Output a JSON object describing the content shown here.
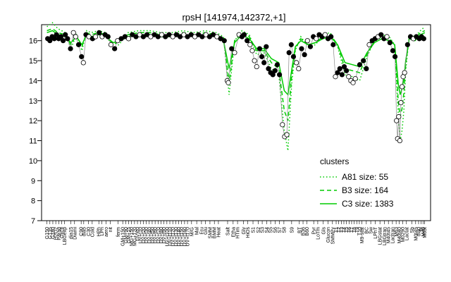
{
  "chart_data": {
    "type": "line",
    "title": "rpsH [141974,142372,+1]",
    "xlabel": "",
    "ylabel": "",
    "ylim": [
      7,
      16.8
    ],
    "yticks": [
      7,
      8,
      9,
      10,
      11,
      12,
      13,
      14,
      15,
      16
    ],
    "legend": {
      "title": "clusters",
      "placement": "lower-right",
      "entries": [
        {
          "label": "A81 size: 55",
          "style": "dotted",
          "color": "#00cc00"
        },
        {
          "label": "B3 size: 164",
          "style": "dashed",
          "color": "#00cc00"
        },
        {
          "label": "C3 size: 1383",
          "style": "solid",
          "color": "#00cc00"
        }
      ]
    },
    "x_labels": [
      {
        "x": 0.0,
        "label": "G150"
      },
      {
        "x": 0.8,
        "label": "G135"
      },
      {
        "x": 1.6,
        "label": "G180"
      },
      {
        "x": 2.4,
        "label": "H2O2"
      },
      {
        "x": 3.2,
        "label": "Paraq"
      },
      {
        "x": 4.0,
        "label": "Oxctl"
      },
      {
        "x": 4.8,
        "label": "LBGexp"
      },
      {
        "x": 6.5,
        "label": "dia15"
      },
      {
        "x": 7.5,
        "label": "Diami"
      },
      {
        "x": 9.3,
        "label": "C90"
      },
      {
        "x": 10.0,
        "label": "dia5"
      },
      {
        "x": 11.3,
        "label": "C30"
      },
      {
        "x": 12.3,
        "label": "Cold"
      },
      {
        "x": 14.1,
        "label": "HPh"
      },
      {
        "x": 14.9,
        "label": "LPh"
      },
      {
        "x": 16.1,
        "label": "aero"
      },
      {
        "x": 17.2,
        "label": "nit"
      },
      {
        "x": 19.3,
        "label": "ferm"
      },
      {
        "x": 20.6,
        "label": "GM+150"
      },
      {
        "x": 21.4,
        "label": "GM+90"
      },
      {
        "x": 22.2,
        "label": "GM+15"
      },
      {
        "x": 23.0,
        "label": "MG+150"
      },
      {
        "x": 23.8,
        "label": "MG+120"
      },
      {
        "x": 24.6,
        "label": "UV+t0"
      },
      {
        "x": 25.4,
        "label": "UV+t10"
      },
      {
        "x": 26.2,
        "label": "UV+t20"
      },
      {
        "x": 27.0,
        "label": "UV+t30"
      },
      {
        "x": 27.8,
        "label": "UV+t40"
      },
      {
        "x": 28.6,
        "label": "UV+t50"
      },
      {
        "x": 29.4,
        "label": "UV+t60"
      },
      {
        "x": 30.2,
        "label": "UV+t70"
      },
      {
        "x": 31.0,
        "label": "UV+t80"
      },
      {
        "x": 31.8,
        "label": "UV+t90"
      },
      {
        "x": 32.6,
        "label": "UV+t100"
      },
      {
        "x": 33.4,
        "label": "UV+t110"
      },
      {
        "x": 34.2,
        "label": "UV+t120"
      },
      {
        "x": 35.0,
        "label": "UV+t130"
      },
      {
        "x": 35.8,
        "label": "UV+t140"
      },
      {
        "x": 36.6,
        "label": "UV+t150"
      },
      {
        "x": 37.4,
        "label": "UV+t160"
      },
      {
        "x": 38.2,
        "label": "UV+t170"
      },
      {
        "x": 39.3,
        "label": "M/G"
      },
      {
        "x": 40.7,
        "label": "Mal"
      },
      {
        "x": 42.0,
        "label": "Fru"
      },
      {
        "x": 43.1,
        "label": "Glu"
      },
      {
        "x": 44.3,
        "label": "SMM"
      },
      {
        "x": 45.5,
        "label": "BMM"
      },
      {
        "x": 46.6,
        "label": "Heat"
      },
      {
        "x": 49.1,
        "label": "Salt"
      },
      {
        "x": 50.6,
        "label": "Etha"
      },
      {
        "x": 51.8,
        "label": "HTim"
      },
      {
        "x": 53.4,
        "label": "Gly"
      },
      {
        "x": 54.6,
        "label": "HiOs"
      },
      {
        "x": 56.0,
        "label": "S1"
      },
      {
        "x": 57.4,
        "label": "S2"
      },
      {
        "x": 58.5,
        "label": "S3"
      },
      {
        "x": 59.7,
        "label": "S4"
      },
      {
        "x": 60.8,
        "label": "S5"
      },
      {
        "x": 62.0,
        "label": "S6"
      },
      {
        "x": 63.2,
        "label": "S7"
      },
      {
        "x": 64.4,
        "label": "S8"
      },
      {
        "x": 66.5,
        "label": "S9"
      },
      {
        "x": 68.6,
        "label": "BT"
      },
      {
        "x": 69.6,
        "label": "B36"
      },
      {
        "x": 70.6,
        "label": "B60"
      },
      {
        "x": 72.5,
        "label": "Pyr"
      },
      {
        "x": 73.6,
        "label": "LoTm"
      },
      {
        "x": 75.1,
        "label": "Gls"
      },
      {
        "x": 76.4,
        "label": "Glucon"
      },
      {
        "x": 77.6,
        "label": "SMMPy"
      },
      {
        "x": 78.6,
        "label": "T1"
      },
      {
        "x": 79.3,
        "label": "T2"
      },
      {
        "x": 80.0,
        "label": "T3"
      },
      {
        "x": 80.7,
        "label": "T4"
      },
      {
        "x": 81.4,
        "label": "T5"
      },
      {
        "x": 82.1,
        "label": "T6"
      },
      {
        "x": 82.8,
        "label": "T7"
      },
      {
        "x": 83.5,
        "label": "T8"
      },
      {
        "x": 84.2,
        "label": "T9"
      },
      {
        "x": 84.9,
        "label": "T10"
      },
      {
        "x": 85.6,
        "label": "M9-stat"
      },
      {
        "x": 86.8,
        "label": "BC"
      },
      {
        "x": 88.0,
        "label": "Sw"
      },
      {
        "x": 89.2,
        "label": "LPhT"
      },
      {
        "x": 90.5,
        "label": "LBGstat"
      },
      {
        "x": 91.7,
        "label": "LBGtran"
      },
      {
        "x": 92.8,
        "label": "M40t45"
      },
      {
        "x": 93.9,
        "label": "Lactran"
      },
      {
        "x": 94.9,
        "label": "M63"
      },
      {
        "x": 95.7,
        "label": "M40t40"
      },
      {
        "x": 96.7,
        "label": "M0290"
      },
      {
        "x": 97.7,
        "label": "Lactat"
      },
      {
        "x": 99.2,
        "label": "Sb"
      },
      {
        "x": 100.2,
        "label": "M0t45"
      },
      {
        "x": 101.0,
        "label": "dia0"
      },
      {
        "x": 101.7,
        "label": "Bl"
      },
      {
        "x": 102.2,
        "label": "M40"
      },
      {
        "x": 102.6,
        "label": "M63t"
      }
    ],
    "series": [
      {
        "name": "A81 size: 55",
        "style": "dotted",
        "color": "#00cc00",
        "x": [
          0,
          1.5,
          3,
          5,
          6.5,
          8,
          9.5,
          10.8,
          12,
          14,
          16,
          18,
          20,
          22,
          25,
          28,
          31,
          34,
          37,
          40,
          43,
          46,
          48,
          49.5,
          51,
          53,
          55,
          57,
          59,
          61,
          63,
          64.5,
          65.5,
          66.5,
          67.5,
          69,
          71,
          73,
          75,
          77,
          79,
          81,
          83,
          85,
          87,
          89,
          91,
          93,
          94.5,
          95.5,
          96,
          96.5,
          97,
          97.5,
          98.5,
          100,
          101.5,
          102.7
        ],
        "y": [
          16.7,
          16.9,
          16.6,
          16.4,
          15.6,
          16.3,
          15.5,
          16.5,
          16.4,
          16.5,
          16.4,
          15.5,
          15.9,
          16.4,
          16.5,
          16.5,
          16.4,
          16.4,
          16.5,
          16.4,
          16.5,
          16.4,
          16.2,
          13.3,
          16.0,
          16.5,
          16.3,
          15.3,
          15.4,
          14.6,
          14.3,
          11.5,
          10.5,
          13.8,
          15.5,
          16.2,
          15.7,
          15.8,
          16.3,
          16.4,
          15.7,
          14.3,
          14.2,
          14.0,
          15.2,
          16.0,
          16.3,
          16.2,
          15.8,
          12.2,
          11.0,
          11.5,
          12.5,
          14.5,
          16.3,
          16.2,
          16.5,
          16.7
        ]
      },
      {
        "name": "B3 size: 164",
        "style": "dashed",
        "color": "#00cc00",
        "x": [
          0,
          1.5,
          3,
          5,
          6.5,
          8,
          9.5,
          10.8,
          12,
          14,
          16,
          18,
          20,
          22,
          25,
          28,
          31,
          34,
          37,
          40,
          43,
          46,
          48,
          49.5,
          51,
          53,
          55,
          57,
          59,
          61,
          63,
          64.5,
          65.5,
          66.5,
          67.5,
          69,
          71,
          73,
          75,
          77,
          79,
          81,
          83,
          85,
          87,
          89,
          91,
          93,
          94.5,
          95.5,
          96,
          96.5,
          97,
          97.5,
          98.5,
          100,
          101.5,
          102.7
        ],
        "y": [
          16.5,
          16.6,
          16.4,
          16.3,
          15.8,
          16.3,
          15.7,
          16.4,
          16.3,
          16.4,
          16.3,
          15.8,
          16.0,
          16.3,
          16.4,
          16.4,
          16.3,
          16.3,
          16.4,
          16.3,
          16.4,
          16.3,
          16.1,
          13.9,
          16.0,
          16.4,
          16.2,
          15.5,
          15.5,
          14.9,
          14.6,
          12.5,
          12.0,
          14.2,
          15.6,
          16.1,
          15.8,
          15.9,
          16.2,
          16.3,
          15.8,
          14.6,
          14.5,
          14.4,
          15.3,
          16.0,
          16.2,
          16.1,
          15.8,
          12.9,
          12.2,
          12.6,
          13.4,
          14.8,
          16.2,
          16.1,
          16.4,
          16.5
        ]
      },
      {
        "name": "C3 size: 1383",
        "style": "solid",
        "color": "#00cc00",
        "x": [
          0,
          1.5,
          3,
          5,
          6.5,
          8,
          9.5,
          10.8,
          12,
          14,
          16,
          18,
          20,
          22,
          25,
          28,
          31,
          34,
          37,
          40,
          43,
          46,
          48,
          49.5,
          51,
          53,
          55,
          57,
          59,
          61,
          63,
          64.5,
          65.5,
          66.5,
          67.5,
          69,
          71,
          73,
          75,
          77,
          79,
          81,
          83,
          85,
          87,
          89,
          91,
          93,
          94.5,
          95.5,
          96,
          96.5,
          97,
          97.5,
          98.5,
          100,
          101.5,
          102.7
        ],
        "y": [
          16.4,
          16.5,
          16.3,
          16.2,
          15.9,
          16.2,
          15.8,
          16.3,
          16.2,
          16.3,
          16.2,
          15.9,
          16.0,
          16.2,
          16.3,
          16.3,
          16.2,
          16.2,
          16.3,
          16.2,
          16.3,
          16.2,
          16.0,
          14.6,
          15.9,
          16.3,
          16.1,
          15.6,
          15.6,
          15.1,
          14.9,
          13.5,
          13.3,
          14.5,
          15.7,
          16.0,
          15.8,
          15.9,
          16.1,
          16.2,
          15.8,
          14.9,
          14.8,
          14.7,
          15.4,
          15.9,
          16.1,
          16.0,
          15.8,
          13.8,
          13.3,
          13.6,
          14.1,
          15.0,
          16.1,
          16.0,
          16.3,
          16.4
        ]
      }
    ],
    "points": [
      {
        "x": 0.2,
        "y": 16.1
      },
      {
        "x": 0.8,
        "y": 16.0
      },
      {
        "x": 1.4,
        "y": 16.2
      },
      {
        "x": 2.0,
        "y": 16.1
      },
      {
        "x": 2.6,
        "y": 16.3
      },
      {
        "x": 3.2,
        "y": 16.1
      },
      {
        "x": 3.8,
        "y": 16.2
      },
      {
        "x": 4.4,
        "y": 16.0
      },
      {
        "x": 5.0,
        "y": 16.3
      },
      {
        "x": 5.6,
        "y": 16.1
      },
      {
        "x": 6.4,
        "y": 15.6
      },
      {
        "x": 7.2,
        "y": 16.4
      },
      {
        "x": 7.8,
        "y": 16.2
      },
      {
        "x": 8.6,
        "y": 15.8
      },
      {
        "x": 9.4,
        "y": 15.2
      },
      {
        "x": 9.9,
        "y": 14.9
      },
      {
        "x": 10.6,
        "y": 16.3
      },
      {
        "x": 11.4,
        "y": 16.2
      },
      {
        "x": 12.4,
        "y": 16.1
      },
      {
        "x": 13.2,
        "y": 16.2
      },
      {
        "x": 14.2,
        "y": 16.4
      },
      {
        "x": 15.0,
        "y": 16.2
      },
      {
        "x": 15.8,
        "y": 16.3
      },
      {
        "x": 16.6,
        "y": 16.2
      },
      {
        "x": 17.4,
        "y": 15.8
      },
      {
        "x": 18.4,
        "y": 15.6
      },
      {
        "x": 19.2,
        "y": 16.0
      },
      {
        "x": 20.2,
        "y": 16.1
      },
      {
        "x": 21.2,
        "y": 16.2
      },
      {
        "x": 22.2,
        "y": 16.1
      },
      {
        "x": 23.2,
        "y": 16.3
      },
      {
        "x": 24.2,
        "y": 16.2
      },
      {
        "x": 25.2,
        "y": 16.3
      },
      {
        "x": 26.2,
        "y": 16.2
      },
      {
        "x": 27.2,
        "y": 16.3
      },
      {
        "x": 28.2,
        "y": 16.2
      },
      {
        "x": 29.2,
        "y": 16.3
      },
      {
        "x": 30.2,
        "y": 16.2
      },
      {
        "x": 31.2,
        "y": 16.3
      },
      {
        "x": 32.2,
        "y": 16.2
      },
      {
        "x": 33.2,
        "y": 16.3
      },
      {
        "x": 34.2,
        "y": 16.2
      },
      {
        "x": 35.2,
        "y": 16.3
      },
      {
        "x": 36.2,
        "y": 16.2
      },
      {
        "x": 37.2,
        "y": 16.3
      },
      {
        "x": 38.2,
        "y": 16.2
      },
      {
        "x": 39.2,
        "y": 16.3
      },
      {
        "x": 40.2,
        "y": 16.2
      },
      {
        "x": 41.2,
        "y": 16.3
      },
      {
        "x": 42.2,
        "y": 16.2
      },
      {
        "x": 43.2,
        "y": 16.3
      },
      {
        "x": 44.2,
        "y": 16.2
      },
      {
        "x": 45.2,
        "y": 16.3
      },
      {
        "x": 46.2,
        "y": 16.2
      },
      {
        "x": 47.2,
        "y": 16.1
      },
      {
        "x": 48.2,
        "y": 16.0
      },
      {
        "x": 49.0,
        "y": 14.0
      },
      {
        "x": 49.3,
        "y": 13.9
      },
      {
        "x": 50.2,
        "y": 15.6
      },
      {
        "x": 51.0,
        "y": 15.4
      },
      {
        "x": 52.2,
        "y": 16.3
      },
      {
        "x": 53.0,
        "y": 16.2
      },
      {
        "x": 53.6,
        "y": 16.3
      },
      {
        "x": 54.4,
        "y": 16.0
      },
      {
        "x": 55.2,
        "y": 15.8
      },
      {
        "x": 55.8,
        "y": 15.5
      },
      {
        "x": 56.4,
        "y": 15.0
      },
      {
        "x": 57.0,
        "y": 14.7
      },
      {
        "x": 57.8,
        "y": 15.6
      },
      {
        "x": 58.4,
        "y": 15.2
      },
      {
        "x": 59.0,
        "y": 14.9
      },
      {
        "x": 59.6,
        "y": 15.7
      },
      {
        "x": 60.2,
        "y": 14.6
      },
      {
        "x": 60.8,
        "y": 14.4
      },
      {
        "x": 61.4,
        "y": 14.3
      },
      {
        "x": 62.0,
        "y": 14.5
      },
      {
        "x": 62.6,
        "y": 14.8
      },
      {
        "x": 63.2,
        "y": 14.3
      },
      {
        "x": 64.0,
        "y": 11.8
      },
      {
        "x": 64.6,
        "y": 11.2
      },
      {
        "x": 65.2,
        "y": 11.3
      },
      {
        "x": 65.8,
        "y": 15.4
      },
      {
        "x": 66.4,
        "y": 15.8
      },
      {
        "x": 67.0,
        "y": 15.2
      },
      {
        "x": 67.8,
        "y": 14.9
      },
      {
        "x": 68.4,
        "y": 14.6
      },
      {
        "x": 69.2,
        "y": 15.6
      },
      {
        "x": 70.0,
        "y": 15.3
      },
      {
        "x": 70.8,
        "y": 16.0
      },
      {
        "x": 71.6,
        "y": 15.7
      },
      {
        "x": 72.4,
        "y": 16.2
      },
      {
        "x": 73.2,
        "y": 16.1
      },
      {
        "x": 74.0,
        "y": 16.3
      },
      {
        "x": 74.8,
        "y": 16.2
      },
      {
        "x": 75.6,
        "y": 16.3
      },
      {
        "x": 76.4,
        "y": 16.1
      },
      {
        "x": 77.2,
        "y": 16.2
      },
      {
        "x": 77.8,
        "y": 15.8
      },
      {
        "x": 78.4,
        "y": 14.2
      },
      {
        "x": 79.0,
        "y": 14.4
      },
      {
        "x": 79.6,
        "y": 14.6
      },
      {
        "x": 80.2,
        "y": 14.3
      },
      {
        "x": 80.8,
        "y": 14.7
      },
      {
        "x": 81.4,
        "y": 14.5
      },
      {
        "x": 82.0,
        "y": 14.2
      },
      {
        "x": 82.6,
        "y": 14.0
      },
      {
        "x": 83.2,
        "y": 13.9
      },
      {
        "x": 83.8,
        "y": 14.1
      },
      {
        "x": 85.0,
        "y": 14.8
      },
      {
        "x": 86.0,
        "y": 15.0
      },
      {
        "x": 86.8,
        "y": 14.6
      },
      {
        "x": 87.6,
        "y": 15.8
      },
      {
        "x": 88.4,
        "y": 16.0
      },
      {
        "x": 89.2,
        "y": 16.1
      },
      {
        "x": 90.0,
        "y": 16.2
      },
      {
        "x": 90.8,
        "y": 16.3
      },
      {
        "x": 91.6,
        "y": 16.1
      },
      {
        "x": 92.4,
        "y": 16.2
      },
      {
        "x": 93.2,
        "y": 15.9
      },
      {
        "x": 94.0,
        "y": 15.5
      },
      {
        "x": 94.6,
        "y": 15.2
      },
      {
        "x": 95.0,
        "y": 12.0
      },
      {
        "x": 95.3,
        "y": 11.1
      },
      {
        "x": 95.6,
        "y": 12.2
      },
      {
        "x": 95.9,
        "y": 11.0
      },
      {
        "x": 96.2,
        "y": 12.9
      },
      {
        "x": 96.5,
        "y": 13.7
      },
      {
        "x": 96.8,
        "y": 14.2
      },
      {
        "x": 97.2,
        "y": 14.4
      },
      {
        "x": 98.0,
        "y": 15.8
      },
      {
        "x": 98.8,
        "y": 16.2
      },
      {
        "x": 99.6,
        "y": 16.1
      },
      {
        "x": 100.4,
        "y": 16.2
      },
      {
        "x": 101.2,
        "y": 16.1
      },
      {
        "x": 101.8,
        "y": 16.2
      },
      {
        "x": 102.4,
        "y": 16.1
      }
    ]
  }
}
